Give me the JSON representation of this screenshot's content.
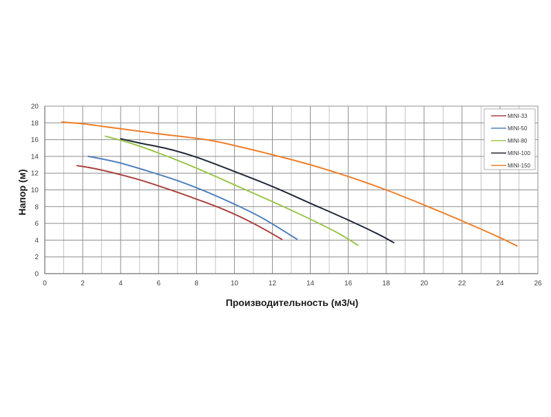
{
  "chart_data": {
    "type": "line",
    "title": "",
    "xlabel": "Производительность (м3/ч)",
    "ylabel": "Напор (м)",
    "xlim": [
      0,
      26
    ],
    "ylim": [
      0,
      20
    ],
    "x_ticks": [
      0,
      2,
      4,
      6,
      8,
      10,
      12,
      14,
      16,
      18,
      20,
      22,
      24,
      26
    ],
    "y_ticks": [
      0,
      2,
      4,
      6,
      8,
      10,
      12,
      14,
      16,
      18,
      20
    ],
    "grid": true,
    "legend_position": "top-right",
    "series": [
      {
        "name": "MINI-33",
        "color": "#a9413e",
        "points": [
          [
            1.7,
            12.9
          ],
          [
            2.5,
            12.6
          ],
          [
            3.5,
            12.1
          ],
          [
            5.0,
            11.2
          ],
          [
            6.5,
            10.1
          ],
          [
            8.0,
            8.9
          ],
          [
            9.5,
            7.6
          ],
          [
            11.0,
            6.0
          ],
          [
            12.5,
            4.1
          ]
        ]
      },
      {
        "name": "MINI-50",
        "color": "#4f7fbd",
        "points": [
          [
            2.3,
            14.0
          ],
          [
            3.0,
            13.7
          ],
          [
            4.0,
            13.2
          ],
          [
            5.5,
            12.2
          ],
          [
            7.0,
            11.1
          ],
          [
            8.5,
            9.8
          ],
          [
            10.0,
            8.3
          ],
          [
            11.5,
            6.6
          ],
          [
            13.3,
            4.1
          ]
        ]
      },
      {
        "name": "MINI-80",
        "color": "#9ac549",
        "points": [
          [
            3.2,
            16.4
          ],
          [
            4.5,
            15.6
          ],
          [
            6.0,
            14.4
          ],
          [
            8.0,
            12.6
          ],
          [
            10.0,
            10.6
          ],
          [
            12.0,
            8.6
          ],
          [
            14.0,
            6.5
          ],
          [
            15.5,
            4.8
          ],
          [
            16.5,
            3.4
          ]
        ]
      },
      {
        "name": "MINI-100",
        "color": "#1d2637",
        "points": [
          [
            4.0,
            16.1
          ],
          [
            5.0,
            15.6
          ],
          [
            6.5,
            14.9
          ],
          [
            8.0,
            13.9
          ],
          [
            10.0,
            12.2
          ],
          [
            12.0,
            10.4
          ],
          [
            14.0,
            8.4
          ],
          [
            16.0,
            6.4
          ],
          [
            17.5,
            4.8
          ],
          [
            18.4,
            3.7
          ]
        ]
      },
      {
        "name": "MINI-150",
        "color": "#ee7d27",
        "points": [
          [
            0.9,
            18.1
          ],
          [
            2.0,
            17.9
          ],
          [
            4.0,
            17.3
          ],
          [
            6.0,
            16.7
          ],
          [
            8.5,
            16.0
          ],
          [
            10.0,
            15.3
          ],
          [
            12.0,
            14.2
          ],
          [
            14.0,
            13.0
          ],
          [
            16.0,
            11.6
          ],
          [
            18.0,
            10.0
          ],
          [
            20.0,
            8.2
          ],
          [
            22.0,
            6.3
          ],
          [
            24.0,
            4.3
          ],
          [
            24.9,
            3.3
          ]
        ]
      }
    ]
  }
}
